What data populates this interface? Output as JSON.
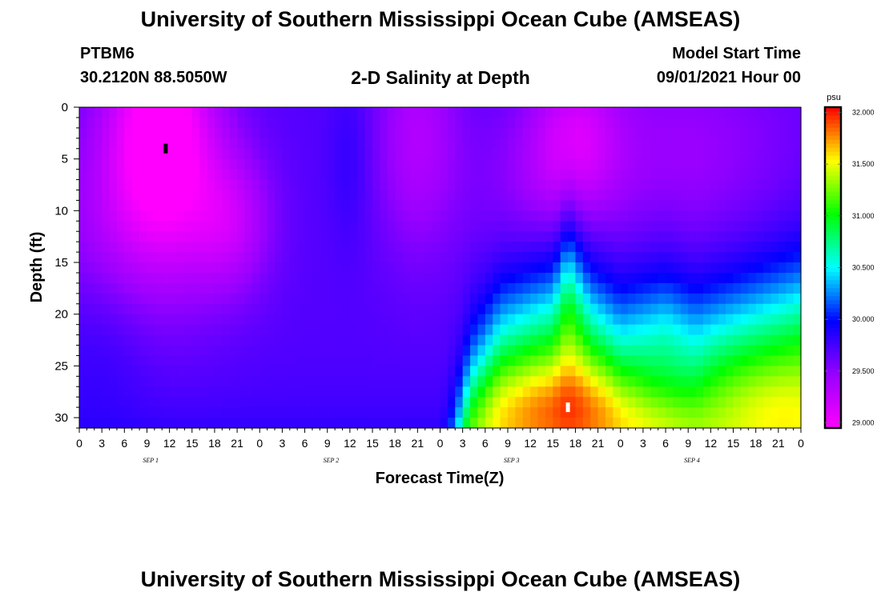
{
  "header": {
    "title": "University of Southern Mississippi Ocean Cube (AMSEAS)",
    "station": "PTBM6",
    "coordinates": "30.2120N  88.5050W",
    "subtitle": "2-D Salinity at Depth",
    "model_start_label": "Model Start Time",
    "model_start_value": "09/01/2021 Hour 00"
  },
  "footer": {
    "title": "University of Southern Mississippi Ocean Cube (AMSEAS)"
  },
  "chart_data": {
    "type": "heatmap",
    "title": "2-D Salinity at Depth",
    "xlabel": "Forecast Time(Z)",
    "ylabel": "Depth (ft)",
    "x_hours": [
      0,
      96
    ],
    "x_tick_labels": [
      "0",
      "3",
      "6",
      "9",
      "12",
      "15",
      "18",
      "21",
      "0",
      "3",
      "6",
      "9",
      "12",
      "15",
      "18",
      "21",
      "0",
      "3",
      "6",
      "9",
      "12",
      "15",
      "18",
      "21",
      "0",
      "3",
      "6",
      "9",
      "12",
      "15",
      "18",
      "21",
      "0"
    ],
    "day_labels": [
      "SEP 1",
      "SEP 2",
      "SEP 3",
      "SEP 4"
    ],
    "ylim": [
      0,
      31
    ],
    "y_ticks": [
      0,
      5,
      10,
      15,
      20,
      25,
      30
    ],
    "y_inverted": true,
    "colorbar": {
      "unit": "psu",
      "range": [
        28.95,
        32.05
      ],
      "ticks": [
        "29.000",
        "29.500",
        "30.000",
        "30.500",
        "31.000",
        "31.500",
        "32.000"
      ],
      "colors": [
        "#ff00ff",
        "#9900ff",
        "#0000ff",
        "#00ffff",
        "#00ff00",
        "#ffff00",
        "#ff0000"
      ]
    },
    "markers": [
      {
        "label": "min",
        "hour": 11.5,
        "depth": 4,
        "color": "#000000"
      },
      {
        "label": "max",
        "hour": 65,
        "depth": 29,
        "color": "#ffffff"
      }
    ],
    "field": {
      "background": 29.7,
      "components": [
        {
          "hour": 11,
          "depth": 2,
          "sh": 5,
          "sd": 8,
          "amp": -0.85
        },
        {
          "hour": 20,
          "depth": 11,
          "sh": 4,
          "sd": 5,
          "amp": -0.4
        },
        {
          "hour": 6,
          "depth": 12,
          "sh": 8,
          "sd": 8,
          "amp": -0.3
        },
        {
          "hour": 3,
          "depth": 22,
          "sh": 5,
          "sd": 6,
          "amp": 0.15
        },
        {
          "hour": 36,
          "depth": 5,
          "sh": 2,
          "sd": 6,
          "amp": 0.12
        },
        {
          "hour": 45,
          "depth": 3,
          "sh": 4,
          "sd": 8,
          "amp": -0.35
        },
        {
          "hour": 66,
          "depth": 3,
          "sh": 4,
          "sd": 5,
          "amp": -0.4
        },
        {
          "hour": 61,
          "depth": 8,
          "sh": 6,
          "sd": 6,
          "amp": -0.2
        },
        {
          "hour": 80,
          "depth": 5,
          "sh": 12,
          "sd": 8,
          "amp": -0.25
        }
      ],
      "halocline": [
        [
          0,
          40
        ],
        [
          48,
          40
        ],
        [
          52,
          27
        ],
        [
          56,
          22
        ],
        [
          60,
          20.5
        ],
        [
          63,
          19.5
        ],
        [
          65,
          15.5
        ],
        [
          68,
          20
        ],
        [
          72,
          22.5
        ],
        [
          78,
          21
        ],
        [
          82,
          22.5
        ],
        [
          88,
          21
        ],
        [
          96,
          19
        ]
      ],
      "halocline_width": 3.5,
      "deep_value": 31.45,
      "core": {
        "hour": 65,
        "depth": 29,
        "sh": 9,
        "sd": 3.5,
        "amp": 0.55
      },
      "core2": {
        "hour": 93,
        "depth": 29,
        "sh": 5,
        "sd": 3,
        "amp": 0.2
      },
      "notch": {
        "hour": 78,
        "depth": 26,
        "sh": 4,
        "sd": 3,
        "amp": -0.35
      }
    }
  }
}
